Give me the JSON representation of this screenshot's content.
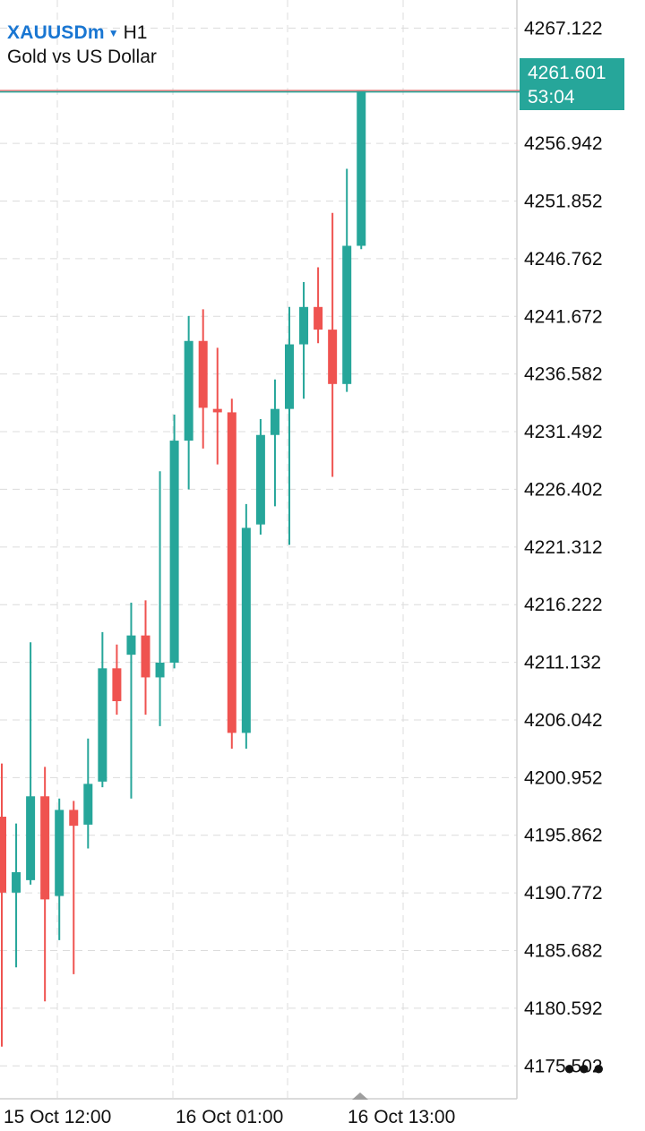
{
  "header": {
    "symbol": "XAUUSDm",
    "timeframe": "H1",
    "description": "Gold vs US Dollar"
  },
  "current_price": {
    "price": "4261.601",
    "countdown": "53:04"
  },
  "colors": {
    "bull": "#26a69a",
    "bear": "#ef5350",
    "grid": "#dcdcdc",
    "price_line": "#e57373"
  },
  "chart_data": {
    "type": "candlestick",
    "ylim": [
      4172.6,
      4269.6
    ],
    "y_ticks": [
      "4267.122",
      "4261.601",
      "4256.942",
      "4251.852",
      "4246.762",
      "4241.672",
      "4236.582",
      "4231.492",
      "4226.402",
      "4221.312",
      "4216.222",
      "4211.132",
      "4206.042",
      "4200.952",
      "4195.862",
      "4190.772",
      "4185.682",
      "4180.592",
      "4175.502"
    ],
    "x_labels": [
      "15 Oct 12:00",
      "16 Oct 01:00",
      "16 Oct 13:00"
    ],
    "candles": [
      {
        "o": 4197.5,
        "h": 4202.2,
        "l": 4177.2,
        "c": 4190.8
      },
      {
        "o": 4190.8,
        "h": 4196.9,
        "l": 4184.2,
        "c": 4192.6
      },
      {
        "o": 4191.9,
        "h": 4212.9,
        "l": 4191.5,
        "c": 4199.3
      },
      {
        "o": 4199.3,
        "h": 4201.9,
        "l": 4181.2,
        "c": 4190.2
      },
      {
        "o": 4190.5,
        "h": 4199.1,
        "l": 4186.6,
        "c": 4198.1
      },
      {
        "o": 4198.1,
        "h": 4198.9,
        "l": 4183.6,
        "c": 4196.7
      },
      {
        "o": 4196.8,
        "h": 4204.4,
        "l": 4194.7,
        "c": 4200.4
      },
      {
        "o": 4200.6,
        "h": 4213.8,
        "l": 4200.1,
        "c": 4210.6
      },
      {
        "o": 4210.6,
        "h": 4212.7,
        "l": 4206.5,
        "c": 4207.7
      },
      {
        "o": 4211.8,
        "h": 4216.4,
        "l": 4199.1,
        "c": 4213.5
      },
      {
        "o": 4213.5,
        "h": 4216.6,
        "l": 4206.5,
        "c": 4209.8
      },
      {
        "o": 4209.8,
        "h": 4228.0,
        "l": 4205.5,
        "c": 4211.1
      },
      {
        "o": 4211.1,
        "h": 4233.0,
        "l": 4210.6,
        "c": 4230.7
      },
      {
        "o": 4230.7,
        "h": 4241.7,
        "l": 4226.4,
        "c": 4239.5
      },
      {
        "o": 4239.5,
        "h": 4242.3,
        "l": 4230.0,
        "c": 4233.6
      },
      {
        "o": 4233.5,
        "h": 4238.9,
        "l": 4228.6,
        "c": 4233.2
      },
      {
        "o": 4233.2,
        "h": 4234.4,
        "l": 4203.5,
        "c": 4204.9
      },
      {
        "o": 4204.9,
        "h": 4225.1,
        "l": 4203.5,
        "c": 4223.0
      },
      {
        "o": 4223.3,
        "h": 4232.6,
        "l": 4222.4,
        "c": 4231.2
      },
      {
        "o": 4231.2,
        "h": 4236.1,
        "l": 4224.9,
        "c": 4233.5
      },
      {
        "o": 4233.5,
        "h": 4242.5,
        "l": 4221.5,
        "c": 4239.2
      },
      {
        "o": 4239.2,
        "h": 4244.7,
        "l": 4234.4,
        "c": 4242.5
      },
      {
        "o": 4242.5,
        "h": 4246.0,
        "l": 4239.3,
        "c": 4240.5
      },
      {
        "o": 4240.5,
        "h": 4250.8,
        "l": 4227.5,
        "c": 4235.7
      },
      {
        "o": 4235.7,
        "h": 4254.7,
        "l": 4235.0,
        "c": 4247.9
      },
      {
        "o": 4247.9,
        "h": 4261.6,
        "l": 4247.6,
        "c": 4261.6
      }
    ]
  }
}
